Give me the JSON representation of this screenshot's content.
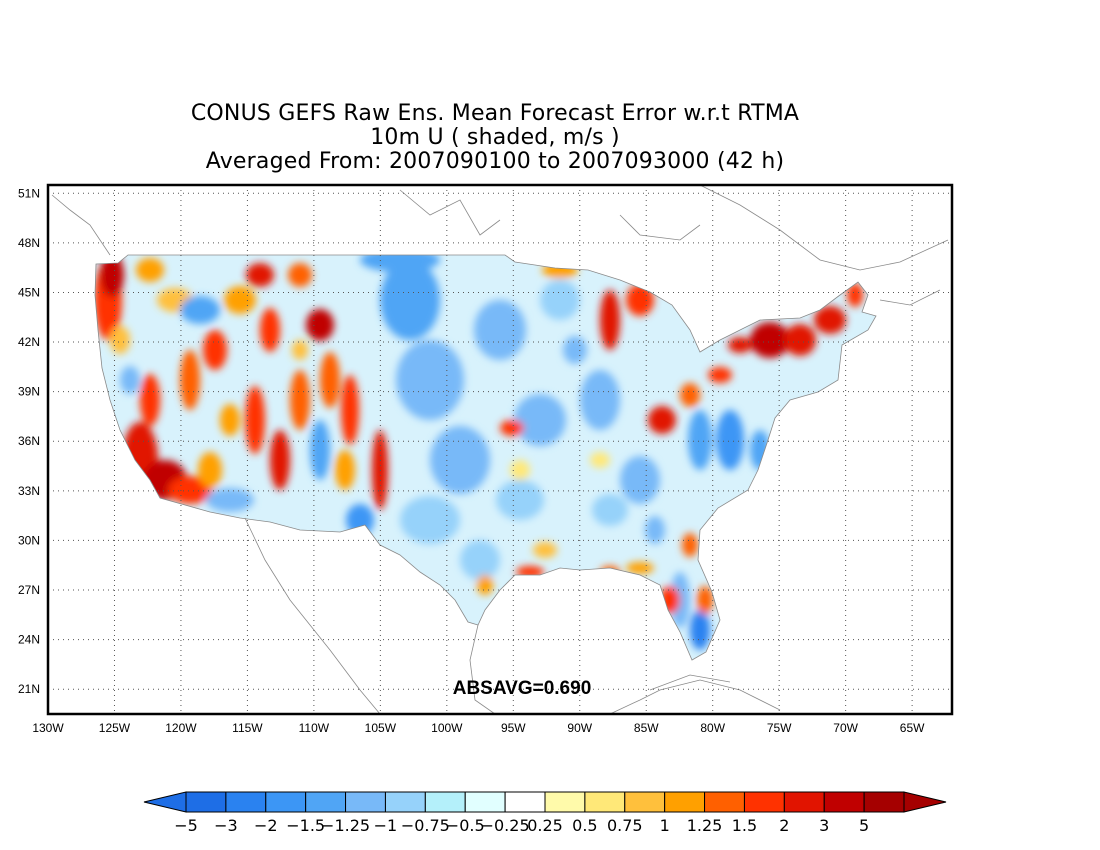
{
  "titles": {
    "line1": "CONUS GEFS Raw Ens. Mean Forecast Error w.r.t RTMA",
    "line2": "10m U ( shaded, m/s )",
    "line3": "Averaged From: 2007090100 to 2007093000 (42 h)"
  },
  "map": {
    "lon_range": [
      -130,
      -62
    ],
    "lat_range": [
      19.5,
      51.5
    ],
    "lon_ticks": [
      "130W",
      "125W",
      "120W",
      "115W",
      "110W",
      "105W",
      "100W",
      "95W",
      "90W",
      "85W",
      "80W",
      "75W",
      "70W",
      "65W"
    ],
    "lon_values": [
      -130,
      -125,
      -120,
      -115,
      -110,
      -105,
      -100,
      -95,
      -90,
      -85,
      -80,
      -75,
      -70,
      -65
    ],
    "lat_ticks": [
      "21N",
      "24N",
      "27N",
      "30N",
      "33N",
      "36N",
      "39N",
      "42N",
      "45N",
      "48N",
      "51N"
    ],
    "lat_values": [
      21,
      24,
      27,
      30,
      33,
      36,
      39,
      42,
      45,
      48,
      51
    ],
    "annotation": "ABSAVG=0.690"
  },
  "colorbar": {
    "labels": [
      "−5",
      "−3",
      "−2",
      "−1.5",
      "−1.25",
      "−1",
      "−0.75",
      "−0.5",
      "−0.25",
      "0.25",
      "0.5",
      "0.75",
      "1",
      "1.25",
      "1.5",
      "2",
      "3",
      "5"
    ],
    "colors": [
      "#1e6ee6",
      "#2a82f0",
      "#3c96f5",
      "#50a5f5",
      "#78b9f8",
      "#96d2fa",
      "#b4f0fa",
      "#e1ffff",
      "#ffffff",
      "#fffaaa",
      "#ffe878",
      "#ffc03c",
      "#ffa000",
      "#ff6000",
      "#ff3200",
      "#e11400",
      "#c00000",
      "#a50000"
    ],
    "low_color": "#1e6ee6",
    "high_color": "#a50000"
  }
}
